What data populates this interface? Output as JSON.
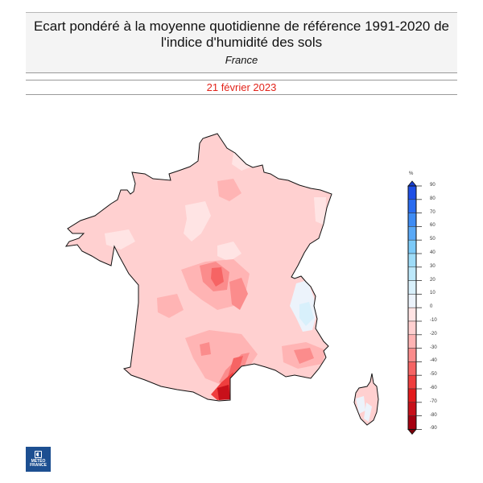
{
  "header": {
    "title_line1": "Ecart pondéré à la moyenne quotidienne de référence 1991-2020 de",
    "title_line2": "l'indice d'humidité des sols",
    "region": "France",
    "date": "21 février 2023"
  },
  "colors": {
    "date_text": "#e2231a",
    "header_bg": "#f4f4f4",
    "map_base": "#ffd0d0",
    "outline": "#111111"
  },
  "colorbar": {
    "unit": "%",
    "ticks": [
      "90",
      "80",
      "70",
      "60",
      "50",
      "40",
      "30",
      "20",
      "10",
      "0",
      "-10",
      "-20",
      "-30",
      "-40",
      "-50",
      "-60",
      "-70",
      "-80",
      "-90"
    ],
    "bins": [
      {
        "range": "80 to 90",
        "color": "#1f4fe6"
      },
      {
        "range": "70 to 80",
        "color": "#2a6cf0"
      },
      {
        "range": "60 to 70",
        "color": "#3f8cf4"
      },
      {
        "range": "50 to 60",
        "color": "#5aa9f6"
      },
      {
        "range": "40 to 50",
        "color": "#7ccaf8"
      },
      {
        "range": "30 to 40",
        "color": "#9edcf8"
      },
      {
        "range": "20 to 30",
        "color": "#bde8fa"
      },
      {
        "range": "10 to 20",
        "color": "#d8f0fb"
      },
      {
        "range": "0 to 10",
        "color": "#ecf3fb"
      },
      {
        "range": "-10 to 0",
        "color": "#ffe4e4"
      },
      {
        "range": "-20 to -10",
        "color": "#ffd0d0"
      },
      {
        "range": "-30 to -20",
        "color": "#ffb4b4"
      },
      {
        "range": "-40 to -30",
        "color": "#fb8c8c"
      },
      {
        "range": "-50 to -40",
        "color": "#f66464"
      },
      {
        "range": "-60 to -50",
        "color": "#ef3e3e"
      },
      {
        "range": "-70 to -60",
        "color": "#e31a1c"
      },
      {
        "range": "-80 to -70",
        "color": "#c8101a"
      },
      {
        "range": "-90 to -80",
        "color": "#a50010"
      }
    ],
    "extend_top_color": "#1a3fd0",
    "extend_bottom_color": "#7a000a"
  },
  "logo": {
    "line1": "MÉTÉO",
    "line2": "FRANCE"
  }
}
